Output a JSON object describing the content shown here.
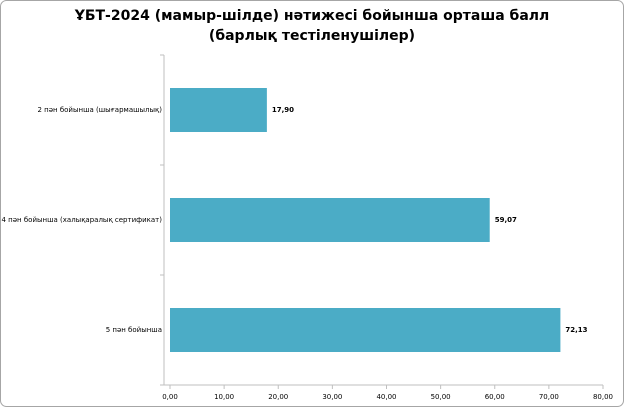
{
  "chart_data": {
    "type": "bar",
    "orientation": "horizontal",
    "title": "ҰБТ-2024  (мамыр-шілде) нәтижесі бойынша орташа балл (барлық тестіленушілер)",
    "categories": [
      "2 пән бойынша  (шығармашылық)",
      "4 пән бойынша  (халықаралық сертификат)",
      "5 пән бойынша"
    ],
    "values": [
      17.9,
      59.07,
      72.13
    ],
    "value_labels": [
      "17,90",
      "59,07",
      "72,13"
    ],
    "color": "#4bacc6",
    "xlim": [
      0,
      80
    ],
    "xticks": [
      {
        "value": 0,
        "label": "0,00"
      },
      {
        "value": 10,
        "label": "10,00"
      },
      {
        "value": 20,
        "label": "20,00"
      },
      {
        "value": 30,
        "label": "30,00"
      },
      {
        "value": 40,
        "label": "40,00"
      },
      {
        "value": 50,
        "label": "50,00"
      },
      {
        "value": 60,
        "label": "60,00"
      },
      {
        "value": 70,
        "label": "70,00"
      },
      {
        "value": 80,
        "label": "80,00"
      }
    ],
    "grid": false
  }
}
